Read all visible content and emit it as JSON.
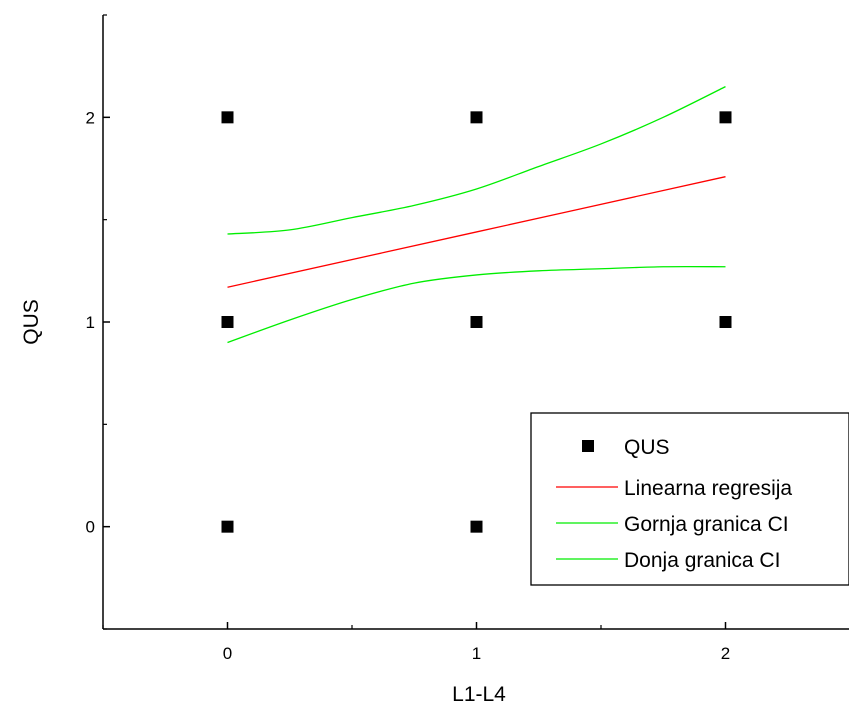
{
  "chart_data": {
    "type": "scatter",
    "xlabel": "L1-L4",
    "ylabel": "QUS",
    "xlim": [
      -0.5,
      2.5
    ],
    "ylim": [
      -0.5,
      2.5
    ],
    "x_ticks": [
      0,
      1,
      2
    ],
    "y_ticks": [
      0,
      1,
      2
    ],
    "x_tick_labels": [
      "0",
      "1",
      "2"
    ],
    "y_tick_labels": [
      "0",
      "1",
      "2"
    ],
    "grid": false,
    "legend_position": "bottom-right",
    "series": [
      {
        "name": "QUS",
        "kind": "points",
        "marker": "square",
        "color": "#000000",
        "points": [
          [
            0,
            2
          ],
          [
            1,
            2
          ],
          [
            2,
            2
          ],
          [
            0,
            1
          ],
          [
            1,
            1
          ],
          [
            2,
            1
          ],
          [
            0,
            0
          ],
          [
            1,
            0
          ]
        ]
      },
      {
        "name": "Linearna regresija",
        "kind": "line",
        "color": "#ff0000",
        "points": [
          [
            0,
            1.17
          ],
          [
            1,
            1.44
          ],
          [
            2,
            1.71
          ]
        ]
      },
      {
        "name": "Gornja granica CI",
        "kind": "line",
        "color": "#00ee00",
        "points": [
          [
            0,
            1.43
          ],
          [
            0.25,
            1.45
          ],
          [
            0.5,
            1.51
          ],
          [
            0.75,
            1.57
          ],
          [
            1,
            1.65
          ],
          [
            1.25,
            1.76
          ],
          [
            1.5,
            1.87
          ],
          [
            1.75,
            2.0
          ],
          [
            2,
            2.15
          ]
        ]
      },
      {
        "name": "Donja granica CI",
        "kind": "line",
        "color": "#00ee00",
        "points": [
          [
            0,
            0.9
          ],
          [
            0.25,
            1.01
          ],
          [
            0.5,
            1.11
          ],
          [
            0.75,
            1.19
          ],
          [
            1,
            1.23
          ],
          [
            1.25,
            1.25
          ],
          [
            1.5,
            1.26
          ],
          [
            1.75,
            1.27
          ],
          [
            2,
            1.27
          ]
        ]
      }
    ]
  }
}
